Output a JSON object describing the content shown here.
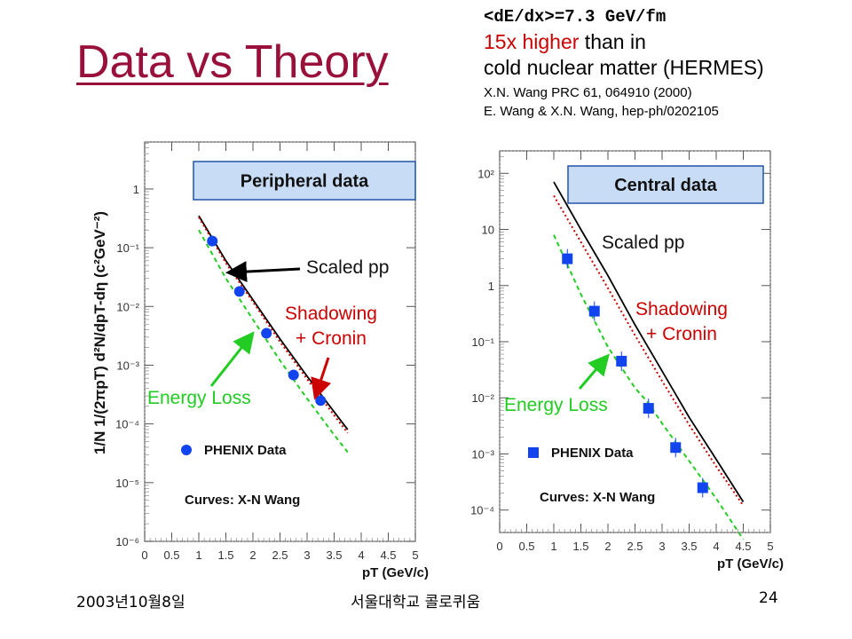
{
  "slide": {
    "title": "Data vs Theory",
    "note": {
      "line1": "<dE/dx>=7.3 GeV/fm",
      "line2_red": "15x higher",
      "line2_rest": " than in",
      "line3": "cold nuclear matter (HERMES)",
      "ref1": "X.N. Wang PRC 61, 064910 (2000)",
      "ref2": "E. Wang & X.N. Wang, hep-ph/0202105"
    },
    "footer": {
      "date": "2003년10월8일",
      "org": "서울대학교 콜로퀴움",
      "page": "24"
    }
  },
  "chart_data": [
    {
      "type": "scatter",
      "panel_label": "Peripheral data",
      "ylabel": "1/N 1/(2πpT) d²N/dpT-dη  (c²GeV⁻²)",
      "xlabel": "pT  (GeV/c)",
      "x_ticks": [
        "0",
        "0.5",
        "1",
        "1.5",
        "2",
        "2.5",
        "3",
        "3.5",
        "4",
        "4.5",
        "5"
      ],
      "y_ticks": [
        "1",
        "10⁻¹",
        "10⁻²",
        "10⁻³",
        "10⁻⁴",
        "10⁻⁵",
        "10⁻⁶"
      ],
      "xlim": [
        0,
        5
      ],
      "ylim_log10": [
        -6,
        0.8
      ],
      "y_scale": "log",
      "legend_data": "PHENIX Data",
      "legend_curves": "Curves: X-N Wang",
      "annotations": {
        "scaled": "Scaled pp",
        "shadow": "Shadowing\n+ Cronin",
        "eloss": "Energy Loss"
      },
      "data_points": [
        {
          "x": 1.25,
          "y": 0.13
        },
        {
          "x": 1.75,
          "y": 0.018
        },
        {
          "x": 2.25,
          "y": 0.0035
        },
        {
          "x": 2.75,
          "y": 0.00068
        },
        {
          "x": 3.25,
          "y": 0.00025
        }
      ],
      "curves": [
        {
          "name": "Scaled pp",
          "color": "#000000",
          "style": "solid",
          "x": [
            1.0,
            1.5,
            2.0,
            2.5,
            3.0,
            3.5,
            3.75
          ],
          "y": [
            0.35,
            0.06,
            0.013,
            0.0028,
            0.00065,
            0.00016,
            8e-05
          ]
        },
        {
          "name": "Shadowing + Cronin",
          "color": "#cc0000",
          "style": "dotted",
          "x": [
            1.0,
            1.5,
            2.0,
            2.5,
            3.0,
            3.5,
            3.75
          ],
          "y": [
            0.33,
            0.055,
            0.012,
            0.0025,
            0.00058,
            0.00014,
            7e-05
          ]
        },
        {
          "name": "Energy Loss",
          "color": "#22cc22",
          "style": "dashed",
          "x": [
            1.0,
            1.5,
            2.0,
            2.5,
            3.0,
            3.5,
            3.75
          ],
          "y": [
            0.2,
            0.03,
            0.006,
            0.0012,
            0.00027,
            6.5e-05,
            3.3e-05
          ]
        }
      ]
    },
    {
      "type": "scatter",
      "panel_label": "Central data",
      "xlabel": "pT  (GeV/c)",
      "x_ticks": [
        "0",
        "0.5",
        "1",
        "1.5",
        "2",
        "2.5",
        "3",
        "3.5",
        "4",
        "4.5",
        "5"
      ],
      "y_ticks": [
        "10²",
        "10",
        "1",
        "10⁻¹",
        "10⁻²",
        "10⁻³",
        "10⁻⁴"
      ],
      "xlim": [
        0,
        5
      ],
      "ylim_log10": [
        -4.4,
        2.4
      ],
      "y_scale": "log",
      "legend_data": "PHENIX Data",
      "legend_curves": "Curves: X-N Wang",
      "annotations": {
        "scaled": "Scaled pp",
        "shadow": "Shadowing\n+ Cronin",
        "eloss": "Energy Loss"
      },
      "data_points": [
        {
          "x": 1.25,
          "y": 3.0
        },
        {
          "x": 1.75,
          "y": 0.35
        },
        {
          "x": 2.25,
          "y": 0.045
        },
        {
          "x": 2.75,
          "y": 0.0065
        },
        {
          "x": 3.25,
          "y": 0.0013
        },
        {
          "x": 3.75,
          "y": 0.00025
        }
      ],
      "curves": [
        {
          "name": "Scaled pp",
          "color": "#000000",
          "style": "solid",
          "x": [
            1.0,
            1.5,
            2.0,
            2.5,
            3.0,
            3.5,
            4.0,
            4.5
          ],
          "y": [
            70,
            10,
            1.5,
            0.2,
            0.03,
            0.0045,
            0.0008,
            0.00014
          ]
        },
        {
          "name": "Shadowing + Cronin",
          "color": "#cc0000",
          "style": "dotted",
          "x": [
            1.0,
            1.5,
            2.0,
            2.5,
            3.0,
            3.5,
            4.0,
            4.5
          ],
          "y": [
            40,
            6,
            0.9,
            0.13,
            0.02,
            0.0033,
            0.0006,
            0.00012
          ]
        },
        {
          "name": "Energy Loss",
          "color": "#22cc22",
          "style": "dashed",
          "x": [
            1.0,
            1.5,
            2.0,
            2.5,
            2.75,
            3.0,
            3.5,
            4.0,
            4.5
          ],
          "y": [
            8,
            0.7,
            0.08,
            0.015,
            0.008,
            0.0035,
            0.00075,
            0.00016,
            3e-05
          ]
        }
      ]
    }
  ]
}
